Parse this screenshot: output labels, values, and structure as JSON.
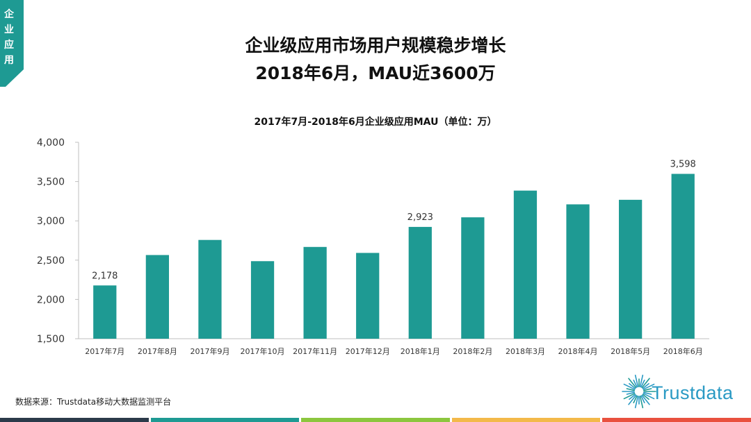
{
  "side_tab": {
    "label_chars": [
      "企",
      "业",
      "应",
      "用"
    ],
    "color": "#1e9a93"
  },
  "header": {
    "title_line1": "企业级应用市场用户规模稳步增长",
    "title_line2": "2018年6月，MAU近3600万"
  },
  "chart_data": {
    "type": "bar",
    "title": "2017年7月-2018年6月企业级应用MAU（单位：万）",
    "categories": [
      "2017年7月",
      "2017年8月",
      "2017年9月",
      "2017年10月",
      "2017年11月",
      "2017年12月",
      "2018年1月",
      "2018年2月",
      "2018年3月",
      "2018年4月",
      "2018年5月",
      "2018年6月"
    ],
    "values": [
      2178,
      2565,
      2757,
      2487,
      2668,
      2592,
      2923,
      3045,
      3385,
      3210,
      3268,
      3598
    ],
    "data_labels": [
      {
        "index": 0,
        "text": "2,178"
      },
      {
        "index": 6,
        "text": "2,923"
      },
      {
        "index": 11,
        "text": "3,598"
      }
    ],
    "ylim": [
      1500,
      4000
    ],
    "yticks": [
      1500,
      2000,
      2500,
      3000,
      3500,
      4000
    ],
    "ytick_labels": [
      "1,500",
      "2,000",
      "2,500",
      "3,000",
      "3,500",
      "4,000"
    ],
    "bar_color": "#1e9a93",
    "grid": false
  },
  "footer": {
    "source": "数据来源：Trustdata移动大数据监测平台",
    "logo_text": "Trustdata",
    "logo_color": "#2a9ac4",
    "bar_colors": [
      "#2b3a4a",
      "#1e9a93",
      "#8cc63e",
      "#f3b94a",
      "#e9503e"
    ]
  }
}
